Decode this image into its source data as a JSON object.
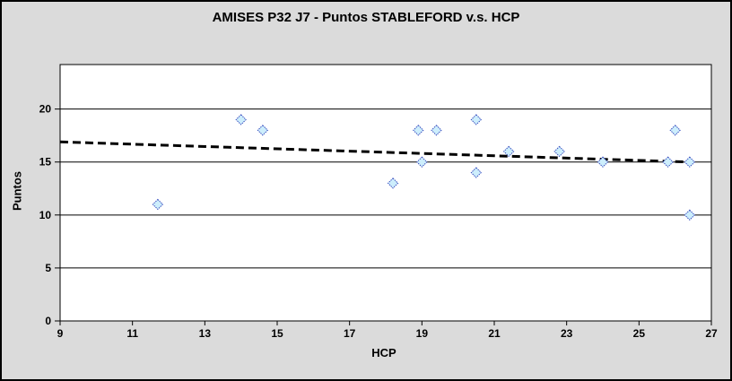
{
  "chart_data": {
    "type": "scatter",
    "title": "AMISES P32 J7 - Puntos STABLEFORD v.s. HCP",
    "xlabel": "HCP",
    "ylabel": "Puntos",
    "xlim": [
      9,
      27
    ],
    "ylim": [
      0,
      24.2
    ],
    "x_ticks": [
      9,
      11,
      13,
      15,
      17,
      19,
      21,
      23,
      25,
      27
    ],
    "y_ticks": [
      0,
      5,
      10,
      15,
      20
    ],
    "grid": "horizontal-only",
    "legend": "none",
    "marker": "diamond",
    "points": [
      [
        11.7,
        11
      ],
      [
        14.0,
        19
      ],
      [
        14.6,
        18
      ],
      [
        18.2,
        13
      ],
      [
        18.9,
        18
      ],
      [
        19.0,
        15
      ],
      [
        19.4,
        18
      ],
      [
        20.5,
        19
      ],
      [
        20.5,
        14
      ],
      [
        21.4,
        16
      ],
      [
        22.8,
        16
      ],
      [
        24.0,
        15
      ],
      [
        25.8,
        15
      ],
      [
        26.0,
        18
      ],
      [
        26.4,
        15
      ],
      [
        26.4,
        10
      ]
    ],
    "trendline": {
      "style": "dashed",
      "x1": 9,
      "y1": 16.9,
      "x2": 26.4,
      "y2": 15.0
    },
    "colors": {
      "background": "#dbdbdb",
      "plot_background": "#ffffff",
      "frame": "#000000",
      "gridline": "#000000",
      "marker_fill": "#cdeefc",
      "marker_stroke": "#3a50c0",
      "trendline": "#000000",
      "text": "#000000"
    }
  }
}
